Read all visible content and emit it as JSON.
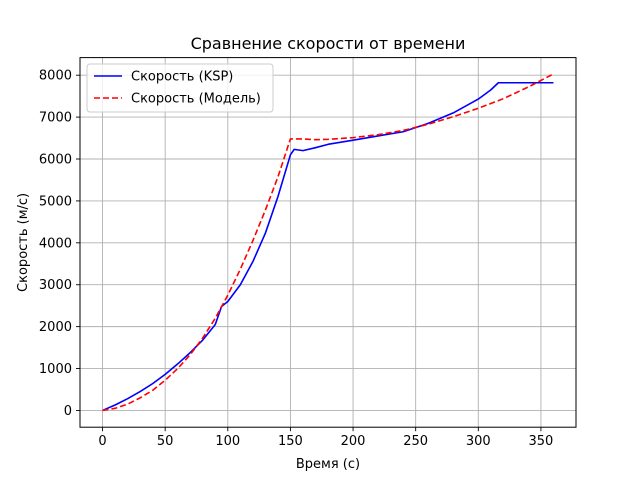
{
  "chart_data": {
    "type": "line",
    "title": "Сравнение скорости от времени",
    "xlabel": "Время (с)",
    "ylabel": "Скорость (м/с)",
    "xlim": [
      -18,
      378
    ],
    "ylim": [
      -400,
      8420
    ],
    "xticks": [
      0,
      50,
      100,
      150,
      200,
      250,
      300,
      350
    ],
    "yticks": [
      0,
      1000,
      2000,
      3000,
      4000,
      5000,
      6000,
      7000,
      8000
    ],
    "grid": true,
    "legend_position": "top-left",
    "series": [
      {
        "name": "Скорость (KSP)",
        "color": "#0000ff",
        "style": "solid",
        "x": [
          0,
          10,
          20,
          30,
          40,
          50,
          60,
          70,
          80,
          90,
          95,
          100,
          110,
          120,
          130,
          140,
          150,
          153,
          160,
          170,
          180,
          200,
          220,
          240,
          260,
          280,
          300,
          310,
          316,
          330,
          350,
          360
        ],
        "y": [
          0,
          130,
          280,
          450,
          640,
          860,
          1110,
          1380,
          1680,
          2050,
          2480,
          2600,
          3000,
          3550,
          4230,
          5100,
          6100,
          6230,
          6200,
          6270,
          6350,
          6450,
          6550,
          6650,
          6850,
          7100,
          7430,
          7650,
          7820,
          7820,
          7820,
          7820
        ]
      },
      {
        "name": "Скорость (Модель)",
        "color": "#ff0000",
        "style": "dashed",
        "x": [
          0,
          10,
          20,
          30,
          40,
          50,
          60,
          70,
          80,
          90,
          100,
          110,
          120,
          130,
          140,
          150,
          160,
          170,
          180,
          200,
          220,
          240,
          260,
          280,
          300,
          320,
          340,
          360
        ],
        "y": [
          0,
          50,
          150,
          300,
          480,
          720,
          1000,
          1330,
          1730,
          2200,
          2750,
          3370,
          4050,
          4780,
          5570,
          6480,
          6480,
          6460,
          6470,
          6510,
          6580,
          6680,
          6830,
          7010,
          7210,
          7440,
          7720,
          8030
        ]
      }
    ]
  }
}
